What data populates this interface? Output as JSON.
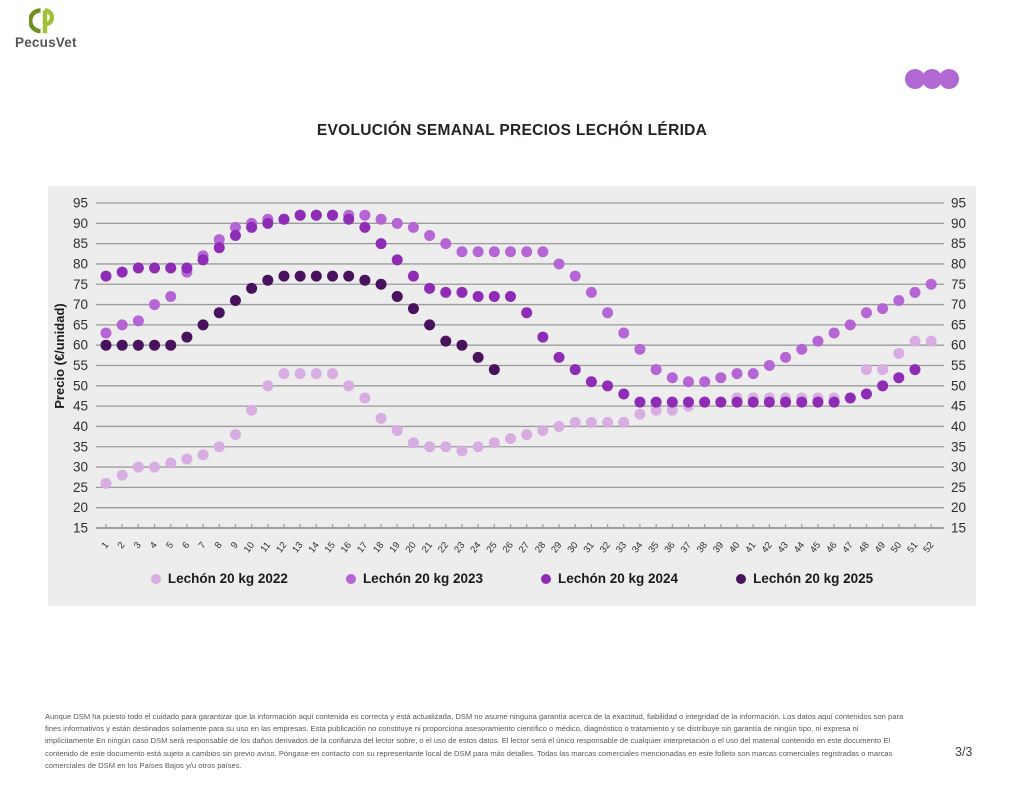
{
  "header": {
    "logo_text": "PecusVet",
    "logo_colors": {
      "dark_green": "#6f8f1f",
      "light_green": "#a2c037"
    },
    "dots_color": "#b168d2",
    "dots_count": 3
  },
  "chart_data": {
    "type": "scatter",
    "title": "EVOLUCIÓN SEMANAL PRECIOS LECHÓN LÉRIDA",
    "xlabel": "",
    "ylabel": "Precio (€/unidad)",
    "ylim": [
      15,
      95
    ],
    "yticks": [
      15,
      20,
      25,
      30,
      35,
      40,
      45,
      50,
      55,
      60,
      65,
      70,
      75,
      80,
      85,
      90,
      95
    ],
    "grid": true,
    "legend_position": "bottom",
    "x": [
      1,
      2,
      3,
      4,
      5,
      6,
      7,
      8,
      9,
      10,
      11,
      12,
      13,
      14,
      15,
      16,
      17,
      18,
      19,
      20,
      21,
      22,
      23,
      24,
      25,
      26,
      27,
      28,
      29,
      30,
      31,
      32,
      33,
      34,
      35,
      36,
      37,
      38,
      39,
      40,
      41,
      42,
      43,
      44,
      45,
      46,
      47,
      48,
      49,
      50,
      51,
      52
    ],
    "series": [
      {
        "name": "Lechón 20 kg 2022",
        "color": "#d8ade2",
        "values": [
          26,
          28,
          30,
          30,
          31,
          32,
          33,
          35,
          38,
          44,
          50,
          53,
          53,
          53,
          53,
          50,
          47,
          42,
          39,
          36,
          35,
          35,
          34,
          35,
          36,
          37,
          38,
          39,
          40,
          41,
          41,
          41,
          41,
          43,
          44,
          44,
          45,
          46,
          46,
          47,
          47,
          47,
          47,
          47,
          47,
          47,
          47,
          54,
          54,
          58,
          61,
          61
        ]
      },
      {
        "name": "Lechón 20 kg 2023",
        "color": "#b565d4",
        "values": [
          63,
          65,
          66,
          70,
          72,
          78,
          82,
          86,
          89,
          90,
          91,
          91,
          92,
          92,
          92,
          92,
          92,
          91,
          90,
          89,
          87,
          85,
          83,
          83,
          83,
          83,
          83,
          83,
          80,
          77,
          73,
          68,
          63,
          59,
          54,
          52,
          51,
          51,
          52,
          53,
          53,
          55,
          57,
          59,
          61,
          63,
          65,
          68,
          69,
          71,
          73,
          75
        ]
      },
      {
        "name": "Lechón 20 kg 2024",
        "color": "#8f2cb5",
        "values": [
          77,
          78,
          79,
          79,
          79,
          79,
          81,
          84,
          87,
          89,
          90,
          91,
          92,
          92,
          92,
          91,
          89,
          85,
          81,
          77,
          74,
          73,
          73,
          72,
          72,
          72,
          68,
          62,
          57,
          54,
          51,
          50,
          48,
          46,
          46,
          46,
          46,
          46,
          46,
          46,
          46,
          46,
          46,
          46,
          46,
          46,
          47,
          48,
          50,
          52,
          54,
          null
        ]
      },
      {
        "name": "Lechón 20 kg 2025",
        "color": "#49125c",
        "values": [
          60,
          60,
          60,
          60,
          60,
          62,
          65,
          68,
          71,
          74,
          76,
          77,
          77,
          77,
          77,
          77,
          76,
          75,
          72,
          69,
          65,
          61,
          60,
          57,
          54,
          null,
          null,
          null,
          null,
          null,
          null,
          null,
          null,
          null,
          null,
          null,
          null,
          null,
          null,
          null,
          null,
          null,
          null,
          null,
          null,
          null,
          null,
          null,
          null,
          null,
          null,
          null
        ]
      }
    ]
  },
  "footer": {
    "disclaimer_lines": [
      "Aunque DSM ha puesto todo el cuidado para garantizar que la información aquí contenida es correcta y está actualizada, DSM no asume ninguna garantía acerca de la exactitud, fiabilidad o integridad de la información. Los datos aquí contenidos son para",
      "fines informativos y están destinados solamente para su uso en las empresas. Esta publicación no constituye ni proporciona asesoramiento científico o médico, diagnóstico o tratamiento y se distribuye sin garantía de ningún tipo, ni expresa ni",
      "implícitamente En ningún caso DSM será responsable de los daños derivados de la confianza del lector sobre, o el uso de estos datos. El lector será el único responsable de cualquier interpretación o el uso del material contenido en este documento El",
      "contenido de este documento está sujeto a cambios sin previo aviso. Póngase en contacto con su representante local de DSM para más detalles. Todas las marcas comerciales mencionadas en este folleto son marcas comerciales registradas o marcas",
      "comerciales de DSM en los Países Bajos y/u otros países."
    ],
    "page": "3/3"
  }
}
